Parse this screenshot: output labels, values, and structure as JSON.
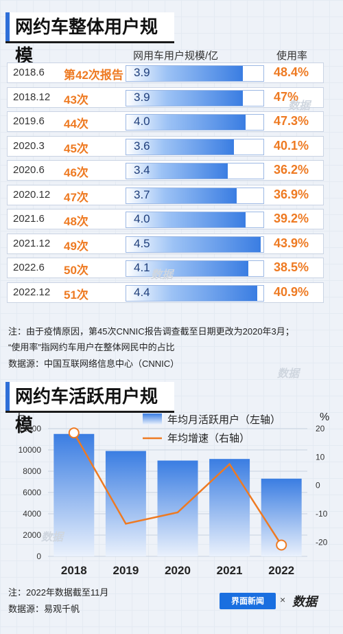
{
  "section1": {
    "title": "网约车整体用户规模",
    "col_scale": "网用车用户规模/亿",
    "col_rate": "使用率"
  },
  "table_rows": [
    {
      "date": "2018.6",
      "rank": "第42次报告",
      "value": "3.9",
      "rate": "48.4%"
    },
    {
      "date": "2018.12",
      "rank": "43次",
      "value": "3.9",
      "rate": "47%"
    },
    {
      "date": "2019.6",
      "rank": "44次",
      "value": "4.0",
      "rate": "47.3%"
    },
    {
      "date": "2020.3",
      "rank": "45次",
      "value": "3.6",
      "rate": "40.1%"
    },
    {
      "date": "2020.6",
      "rank": "46次",
      "value": "3.4",
      "rate": "36.2%"
    },
    {
      "date": "2020.12",
      "rank": "47次",
      "value": "3.7",
      "rate": "36.9%"
    },
    {
      "date": "2021.6",
      "rank": "48次",
      "value": "4.0",
      "rate": "39.2%"
    },
    {
      "date": "2021.12",
      "rank": "49次",
      "value": "4.5",
      "rate": "43.9%"
    },
    {
      "date": "2022.6",
      "rank": "50次",
      "value": "4.1",
      "rate": "38.5%"
    },
    {
      "date": "2022.12",
      "rank": "51次",
      "value": "4.4",
      "rate": "40.9%"
    }
  ],
  "notes1": {
    "line1": "注：由于疫情原因，第45次CNNIC报告调查截至日期更改为2020年3月；",
    "line2": "“使用率”指网约车用户在整体网民中的占比",
    "source": "数据源：中国互联网络信息中心（CNNIC）"
  },
  "section2": {
    "title": "网约车活跃用户规模",
    "left_unit": "万",
    "right_unit": "%"
  },
  "notes2": {
    "line1": "注：2022年数据截至11月",
    "source": "数据源：易观千帆"
  },
  "brand": {
    "name": "界面新闻",
    "x": "×",
    "partner": "数据"
  },
  "watermark": "数据",
  "colors": {
    "bar": "#3a7de2",
    "line": "#ee7a22",
    "rank": "#ee7a22",
    "accent": "#2f6fd8"
  },
  "chart_data": [
    {
      "type": "bar",
      "categories": [
        "2018.6",
        "2018.12",
        "2019.6",
        "2020.3",
        "2020.6",
        "2020.12",
        "2021.6",
        "2021.12",
        "2022.6",
        "2022.12"
      ],
      "series": [
        {
          "name": "网用车用户规模/亿",
          "values": [
            3.9,
            3.9,
            4.0,
            3.6,
            3.4,
            3.7,
            4.0,
            4.5,
            4.1,
            4.4
          ]
        },
        {
          "name": "使用率",
          "values": [
            48.4,
            47,
            47.3,
            40.1,
            36.2,
            36.9,
            39.2,
            43.9,
            38.5,
            40.9
          ]
        }
      ],
      "title": "网约车整体用户规模"
    },
    {
      "type": "bar",
      "title": "网约车活跃用户规模",
      "categories": [
        "2018",
        "2019",
        "2020",
        "2021",
        "2022"
      ],
      "series": [
        {
          "name": "年均月活跃用户（左轴）",
          "type": "bar",
          "axis": "left",
          "values": [
            11500,
            9900,
            9000,
            9150,
            7300
          ]
        },
        {
          "name": "年均增速（右轴）",
          "type": "line",
          "axis": "right",
          "values": [
            18.5,
            -13.5,
            -9.5,
            7.5,
            -21
          ]
        }
      ],
      "ylabel_left": "万",
      "ylabel_right": "%",
      "ylim_left": [
        0,
        12000
      ],
      "yticks_left": [
        0,
        2000,
        4000,
        6000,
        8000,
        10000,
        12000
      ],
      "ylim_right": [
        -25,
        20
      ],
      "yticks_right": [
        20,
        10,
        0,
        -10,
        -20
      ],
      "legend": "top-right",
      "grid": true
    }
  ]
}
